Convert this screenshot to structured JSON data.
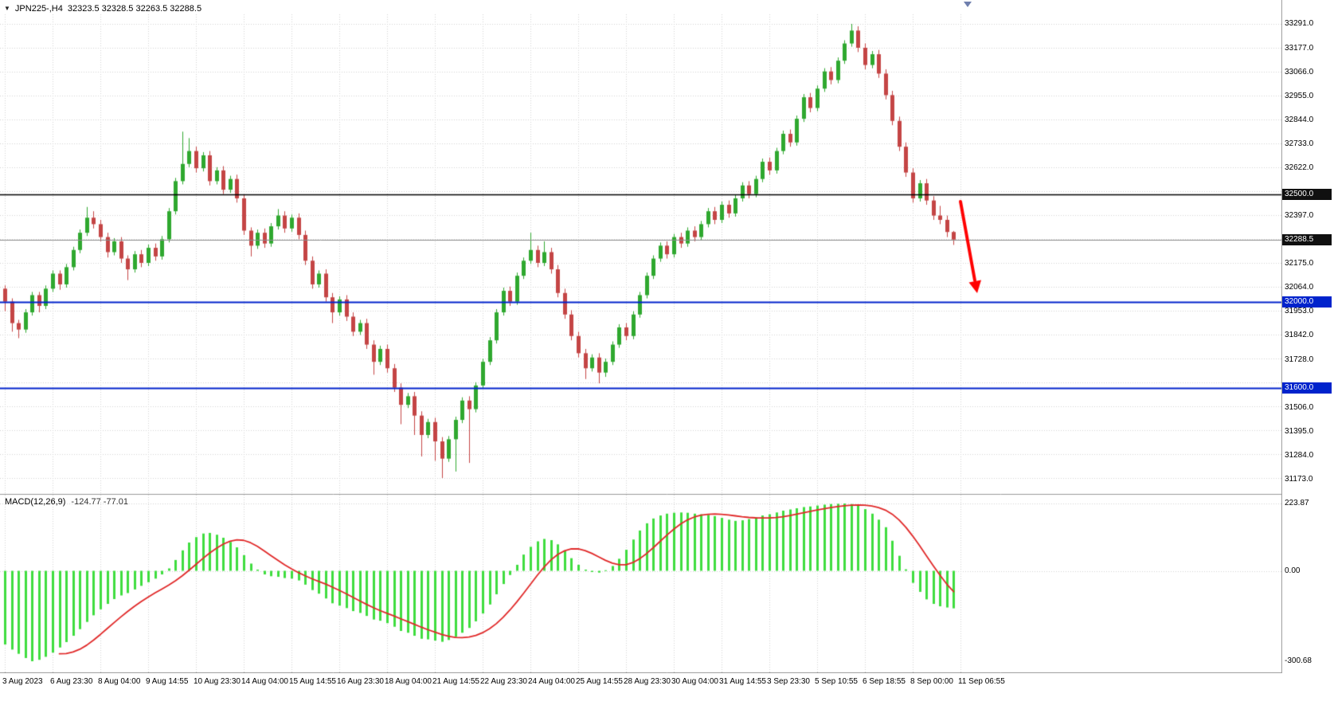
{
  "header": {
    "symbol": "JPN225-,H4",
    "ohlc": "32323.5 32328.5 32263.5 32288.5"
  },
  "icons": {
    "dropdown_caret": "▼",
    "shift_marker": "chart-shift-marker"
  },
  "colors": {
    "background": "#FFFFFF",
    "grid": "#D2D2D2",
    "up": "#2FA82F",
    "down": "#C44545",
    "level_black": "#000000",
    "level_blue": "#0023CC",
    "current_price_line": "#8B8B8B",
    "macd_bar": "#3FDD3F",
    "macd_signal": "#E02828",
    "badge_black_bg": "#101010",
    "badge_blue_bg": "#0023CC",
    "axis_text": "#000000",
    "arrow": "#FF0000",
    "separator": "#9A9A9A"
  },
  "price_axis": {
    "ticks": [
      "33291.0",
      "33177.0",
      "33066.0",
      "32955.0",
      "32844.0",
      "32733.0",
      "32622.0",
      "32397.0",
      "32175.0",
      "32064.0",
      "31953.0",
      "31842.0",
      "31728.0",
      "31506.0",
      "31395.0",
      "31284.0",
      "31173.0"
    ],
    "badges": [
      {
        "label": "32500.0",
        "price": 32500,
        "type": "black"
      },
      {
        "label": "32288.5",
        "price": 32288.5,
        "type": "black"
      },
      {
        "label": "32000.0",
        "price": 32000,
        "type": "blue"
      },
      {
        "label": "31600.0",
        "price": 31600,
        "type": "blue"
      }
    ]
  },
  "time_axis": {
    "labels": [
      "3 Aug 2023",
      "6 Aug 23:30",
      "8 Aug 04:00",
      "9 Aug 14:55",
      "10 Aug 23:30",
      "14 Aug 04:00",
      "15 Aug 14:55",
      "16 Aug 23:30",
      "18 Aug 04:00",
      "21 Aug 14:55",
      "22 Aug 23:30",
      "24 Aug 04:00",
      "25 Aug 14:55",
      "28 Aug 23:30",
      "30 Aug 04:00",
      "31 Aug 14:55",
      "3 Sep 23:30",
      "5 Sep 10:55",
      "6 Sep 18:55",
      "8 Sep 00:00",
      "11 Sep 06:55"
    ]
  },
  "indicator": {
    "name": "MACD(12,26,9)",
    "values": "-124.77 -77.01",
    "scale": {
      "max": "223.87",
      "zero": "0.00",
      "min": "-300.68"
    }
  },
  "annotation": {
    "type": "arrow",
    "color": "#FF0000",
    "from_price": 32520,
    "to_price": 32110,
    "note": "red down arrow after price rejected the 32500 level"
  },
  "chart_data": [
    {
      "type": "candlestick",
      "title": "JPN225- H4",
      "ylim": [
        31173,
        33291
      ],
      "x_label_every": 7,
      "grid": true,
      "levels": [
        {
          "price": 32500,
          "color": "#000000",
          "width": 1.6
        },
        {
          "price": 32000,
          "color": "#0023CC",
          "width": 2
        },
        {
          "price": 31600,
          "color": "#0023CC",
          "width": 2
        }
      ],
      "current_price": 32288.5,
      "candles": [
        [
          32060,
          32075,
          31955,
          32000
        ],
        [
          32000,
          32015,
          31860,
          31900
        ],
        [
          31900,
          31915,
          31830,
          31870
        ],
        [
          31870,
          31965,
          31855,
          31950
        ],
        [
          31950,
          32045,
          31935,
          32030
        ],
        [
          32030,
          32045,
          31950,
          31980
        ],
        [
          31980,
          32075,
          31965,
          32060
        ],
        [
          32060,
          32145,
          32045,
          32130
        ],
        [
          32130,
          32145,
          32055,
          32080
        ],
        [
          32080,
          32175,
          32065,
          32160
        ],
        [
          32160,
          32255,
          32145,
          32240
        ],
        [
          32240,
          32335,
          32225,
          32320
        ],
        [
          32320,
          32440,
          32305,
          32390
        ],
        [
          32390,
          32420,
          32340,
          32360
        ],
        [
          32360,
          32380,
          32280,
          32300
        ],
        [
          32300,
          32320,
          32205,
          32230
        ],
        [
          32230,
          32295,
          32215,
          32280
        ],
        [
          32280,
          32300,
          32180,
          32200
        ],
        [
          32200,
          32215,
          32100,
          32150
        ],
        [
          32150,
          32235,
          32135,
          32220
        ],
        [
          32220,
          32240,
          32160,
          32180
        ],
        [
          32180,
          32265,
          32165,
          32250
        ],
        [
          32250,
          32270,
          32190,
          32210
        ],
        [
          32210,
          32305,
          32195,
          32290
        ],
        [
          32290,
          32435,
          32275,
          32420
        ],
        [
          32420,
          32575,
          32405,
          32560
        ],
        [
          32560,
          32790,
          32545,
          32640
        ],
        [
          32640,
          32760,
          32625,
          32700
        ],
        [
          32700,
          32720,
          32600,
          32620
        ],
        [
          32620,
          32695,
          32605,
          32680
        ],
        [
          32680,
          32700,
          32540,
          32560
        ],
        [
          32560,
          32625,
          32545,
          32610
        ],
        [
          32610,
          32630,
          32500,
          32520
        ],
        [
          32520,
          32585,
          32505,
          32570
        ],
        [
          32570,
          32590,
          32460,
          32480
        ],
        [
          32480,
          32495,
          32310,
          32330
        ],
        [
          32330,
          32345,
          32210,
          32260
        ],
        [
          32260,
          32335,
          32245,
          32320
        ],
        [
          32320,
          32340,
          32250,
          32270
        ],
        [
          32270,
          32365,
          32255,
          32350
        ],
        [
          32350,
          32430,
          32335,
          32400
        ],
        [
          32400,
          32420,
          32320,
          32340
        ],
        [
          32340,
          32405,
          32325,
          32390
        ],
        [
          32390,
          32410,
          32290,
          32310
        ],
        [
          32310,
          32330,
          32170,
          32190
        ],
        [
          32190,
          32210,
          32060,
          32080
        ],
        [
          32080,
          32145,
          32065,
          32130
        ],
        [
          32130,
          32150,
          32000,
          32020
        ],
        [
          32020,
          32040,
          31900,
          31950
        ],
        [
          31950,
          32025,
          31935,
          32010
        ],
        [
          32010,
          32030,
          31910,
          31930
        ],
        [
          31930,
          31950,
          31840,
          31860
        ],
        [
          31860,
          31915,
          31845,
          31900
        ],
        [
          31900,
          31920,
          31780,
          31800
        ],
        [
          31800,
          31820,
          31660,
          31720
        ],
        [
          31720,
          31795,
          31705,
          31780
        ],
        [
          31780,
          31800,
          31670,
          31690
        ],
        [
          31690,
          31710,
          31580,
          31600
        ],
        [
          31600,
          31620,
          31430,
          31520
        ],
        [
          31520,
          31575,
          31505,
          31560
        ],
        [
          31560,
          31580,
          31380,
          31470
        ],
        [
          31470,
          31490,
          31280,
          31380
        ],
        [
          31380,
          31455,
          31365,
          31440
        ],
        [
          31440,
          31460,
          31260,
          31350
        ],
        [
          31350,
          31370,
          31180,
          31270
        ],
        [
          31270,
          31375,
          31255,
          31360
        ],
        [
          31360,
          31465,
          31210,
          31450
        ],
        [
          31450,
          31555,
          31435,
          31540
        ],
        [
          31540,
          31560,
          31250,
          31500
        ],
        [
          31500,
          31625,
          31485,
          31610
        ],
        [
          31610,
          31735,
          31595,
          31720
        ],
        [
          31720,
          31835,
          31705,
          31820
        ],
        [
          31820,
          31965,
          31805,
          31950
        ],
        [
          31950,
          32065,
          31935,
          32050
        ],
        [
          32050,
          32070,
          31980,
          32000
        ],
        [
          32000,
          32135,
          31985,
          32120
        ],
        [
          32120,
          32205,
          32105,
          32190
        ],
        [
          32190,
          32320,
          32175,
          32240
        ],
        [
          32240,
          32260,
          32160,
          32180
        ],
        [
          32180,
          32280,
          32165,
          32230
        ],
        [
          32230,
          32250,
          32130,
          32150
        ],
        [
          32150,
          32170,
          32020,
          32040
        ],
        [
          32040,
          32060,
          31920,
          31940
        ],
        [
          31940,
          31960,
          31820,
          31840
        ],
        [
          31840,
          31860,
          31740,
          31760
        ],
        [
          31760,
          31780,
          31640,
          31690
        ],
        [
          31690,
          31755,
          31675,
          31740
        ],
        [
          31740,
          31760,
          31620,
          31670
        ],
        [
          31670,
          31735,
          31650,
          31720
        ],
        [
          31720,
          31815,
          31705,
          31800
        ],
        [
          31800,
          31895,
          31785,
          31880
        ],
        [
          31880,
          31900,
          31820,
          31840
        ],
        [
          31840,
          31955,
          31825,
          31940
        ],
        [
          31940,
          32045,
          31925,
          32030
        ],
        [
          32030,
          32135,
          32015,
          32120
        ],
        [
          32120,
          32215,
          32105,
          32200
        ],
        [
          32200,
          32275,
          32185,
          32260
        ],
        [
          32260,
          32280,
          32200,
          32220
        ],
        [
          32220,
          32315,
          32205,
          32300
        ],
        [
          32300,
          32320,
          32250,
          32270
        ],
        [
          32270,
          32345,
          32255,
          32330
        ],
        [
          32330,
          32350,
          32280,
          32300
        ],
        [
          32300,
          32375,
          32285,
          32360
        ],
        [
          32360,
          32435,
          32345,
          32420
        ],
        [
          32420,
          32440,
          32360,
          32380
        ],
        [
          32380,
          32465,
          32365,
          32450
        ],
        [
          32450,
          32470,
          32390,
          32410
        ],
        [
          32410,
          32495,
          32395,
          32480
        ],
        [
          32480,
          32555,
          32465,
          32540
        ],
        [
          32540,
          32560,
          32480,
          32500
        ],
        [
          32500,
          32585,
          32485,
          32570
        ],
        [
          32570,
          32665,
          32555,
          32650
        ],
        [
          32650,
          32670,
          32590,
          32610
        ],
        [
          32610,
          32715,
          32595,
          32700
        ],
        [
          32700,
          32795,
          32685,
          32780
        ],
        [
          32780,
          32800,
          32720,
          32740
        ],
        [
          32740,
          32865,
          32725,
          32850
        ],
        [
          32850,
          32965,
          32835,
          32950
        ],
        [
          32950,
          32970,
          32880,
          32900
        ],
        [
          32900,
          33005,
          32885,
          32990
        ],
        [
          32990,
          33085,
          32975,
          33070
        ],
        [
          33070,
          33090,
          33010,
          33030
        ],
        [
          33030,
          33135,
          33015,
          33120
        ],
        [
          33120,
          33215,
          33105,
          33200
        ],
        [
          33200,
          33291,
          33185,
          33260
        ],
        [
          33260,
          33280,
          33160,
          33180
        ],
        [
          33180,
          33200,
          33080,
          33100
        ],
        [
          33100,
          33165,
          33085,
          33150
        ],
        [
          33150,
          33170,
          33040,
          33060
        ],
        [
          33060,
          33080,
          32940,
          32960
        ],
        [
          32960,
          32980,
          32820,
          32840
        ],
        [
          32840,
          32860,
          32700,
          32720
        ],
        [
          32720,
          32740,
          32580,
          32600
        ],
        [
          32600,
          32620,
          32460,
          32480
        ],
        [
          32480,
          32565,
          32465,
          32550
        ],
        [
          32550,
          32570,
          32450,
          32470
        ],
        [
          32470,
          32490,
          32380,
          32400
        ],
        [
          32400,
          32445,
          32360,
          32380
        ],
        [
          32380,
          32400,
          32300,
          32323.5
        ],
        [
          32323.5,
          32328.5,
          32263.5,
          32288.5
        ]
      ]
    },
    {
      "type": "bar",
      "name": "MACD(12,26,9)",
      "ylim": [
        -300.68,
        223.87
      ],
      "signal": "SMA(9) of values",
      "displayed_values": {
        "macd": -124.77,
        "signal": -77.01
      },
      "values": [
        -245,
        -262,
        -276,
        -290,
        -300.68,
        -296,
        -286,
        -272,
        -255,
        -237,
        -216,
        -194,
        -170,
        -148,
        -128,
        -110,
        -94,
        -82,
        -74,
        -62,
        -50,
        -38,
        -26,
        -12,
        8,
        36,
        68,
        94,
        112,
        124,
        126,
        120,
        110,
        96,
        78,
        52,
        24,
        4,
        -12,
        -18,
        -20,
        -24,
        -26,
        -32,
        -46,
        -64,
        -76,
        -92,
        -108,
        -116,
        -124,
        -134,
        -140,
        -150,
        -162,
        -166,
        -174,
        -186,
        -200,
        -206,
        -216,
        -226,
        -228,
        -232,
        -236,
        -230,
        -220,
        -206,
        -190,
        -168,
        -142,
        -112,
        -78,
        -44,
        -14,
        20,
        54,
        80,
        98,
        106,
        102,
        88,
        66,
        42,
        20,
        4,
        -4,
        -6,
        2,
        16,
        40,
        70,
        104,
        134,
        158,
        174,
        184,
        190,
        193,
        194,
        193,
        190,
        188,
        186,
        182,
        176,
        170,
        166,
        168,
        172,
        178,
        184,
        188,
        194,
        200,
        204,
        208,
        212,
        214,
        217,
        220,
        222,
        223,
        223.87,
        222,
        216,
        205,
        190,
        170,
        145,
        100,
        50,
        5,
        -40,
        -70,
        -95,
        -110,
        -118,
        -122,
        -124.77
      ]
    }
  ]
}
